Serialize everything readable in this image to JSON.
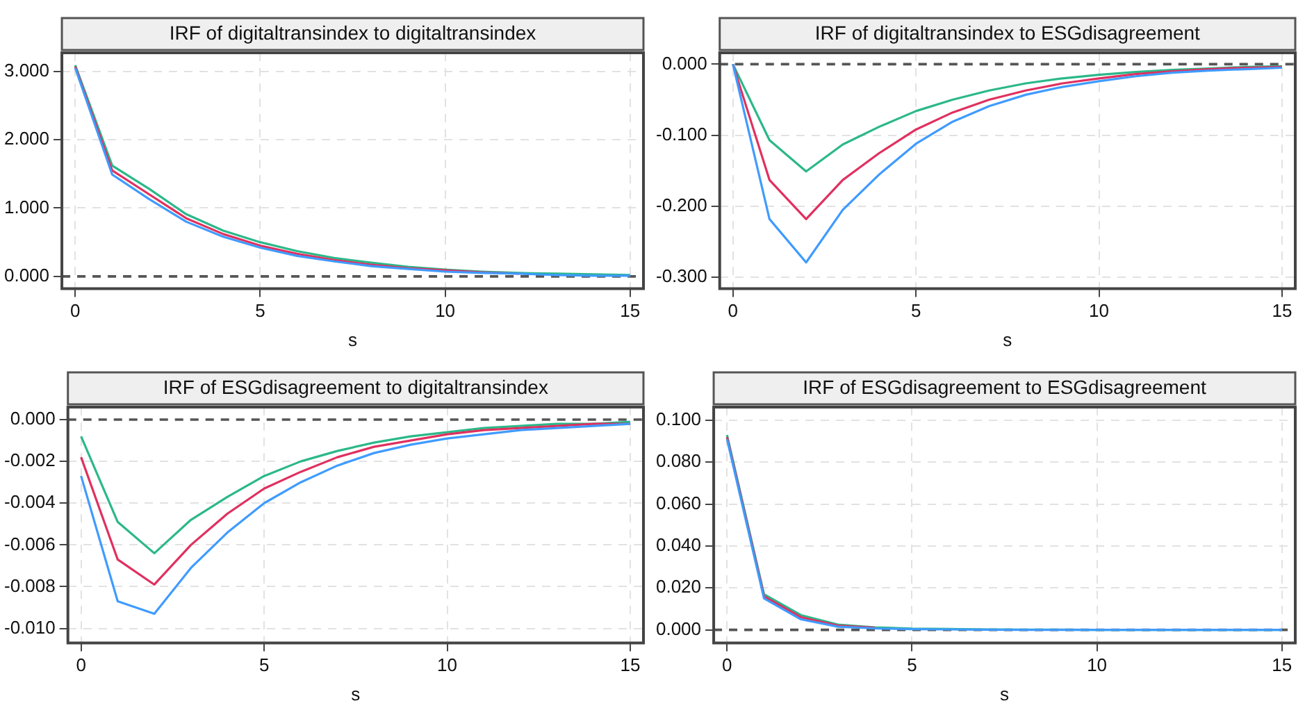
{
  "chart_data": [
    {
      "type": "line",
      "title": "IRF of digitaltransindex to digitaltransindex",
      "xlabel": "s",
      "x": [
        0,
        1,
        2,
        3,
        4,
        5,
        6,
        7,
        8,
        9,
        10,
        11,
        12,
        13,
        14,
        15
      ],
      "xlim": [
        -0.36,
        15.36
      ],
      "xticks": [
        0,
        5,
        10,
        15
      ],
      "ylim": [
        -0.18,
        3.27
      ],
      "yticks": [
        {
          "value": 0,
          "label": "0.000"
        },
        {
          "value": 1,
          "label": "1.000"
        },
        {
          "value": 2,
          "label": "2.000"
        },
        {
          "value": 3,
          "label": "3.000"
        }
      ],
      "grid": true,
      "ref_lines": [
        {
          "axis": "y",
          "value": 0,
          "line_style": "dashed"
        }
      ],
      "series": [
        {
          "color": "#3f9bff",
          "values": [
            3.05,
            1.49,
            1.13,
            0.8,
            0.58,
            0.42,
            0.3,
            0.22,
            0.15,
            0.11,
            0.07,
            0.05,
            0.04,
            0.02,
            0.01,
            0.01
          ]
        },
        {
          "color": "#e0305f",
          "values": [
            3.07,
            1.55,
            1.2,
            0.85,
            0.62,
            0.45,
            0.33,
            0.24,
            0.17,
            0.12,
            0.09,
            0.06,
            0.04,
            null,
            null,
            null
          ]
        },
        {
          "color": "#2bb889",
          "values": [
            3.09,
            1.62,
            1.28,
            0.91,
            0.67,
            0.5,
            0.37,
            0.27,
            0.2,
            0.14,
            0.1,
            0.07,
            0.05,
            0.04,
            0.03,
            0.02
          ]
        }
      ]
    },
    {
      "type": "line",
      "title": "IRF of digitaltransindex to ESGdisagreement",
      "xlabel": "s",
      "x": [
        0,
        1,
        2,
        3,
        4,
        5,
        6,
        7,
        8,
        9,
        10,
        11,
        12,
        13,
        14,
        15
      ],
      "xlim": [
        -0.36,
        15.36
      ],
      "xticks": [
        0,
        5,
        10,
        15
      ],
      "ylim": [
        -0.316,
        0.016
      ],
      "yticks": [
        {
          "value": -0.3,
          "label": "-0.300"
        },
        {
          "value": -0.2,
          "label": "-0.200"
        },
        {
          "value": -0.1,
          "label": "-0.100"
        },
        {
          "value": 0,
          "label": "0.000"
        }
      ],
      "grid": true,
      "ref_lines": [
        {
          "axis": "y",
          "value": 0,
          "line_style": "dashed"
        }
      ],
      "series": [
        {
          "color": "#3f9bff",
          "values": [
            0,
            -0.218,
            -0.279,
            -0.205,
            -0.155,
            -0.112,
            -0.081,
            -0.059,
            -0.043,
            -0.032,
            -0.024,
            -0.017,
            -0.012,
            -0.009,
            -0.007,
            -0.005
          ]
        },
        {
          "color": "#e0305f",
          "values": [
            0,
            -0.163,
            -0.218,
            -0.163,
            -0.125,
            -0.092,
            -0.068,
            -0.05,
            -0.037,
            -0.027,
            -0.02,
            -0.014,
            -0.01,
            -0.007,
            -0.005,
            -0.004
          ]
        },
        {
          "color": "#2bb889",
          "values": [
            0,
            -0.107,
            -0.151,
            -0.113,
            -0.088,
            -0.066,
            -0.05,
            -0.037,
            -0.027,
            -0.02,
            -0.015,
            -0.011,
            -0.008,
            -0.006,
            -0.004,
            -0.003
          ]
        }
      ]
    },
    {
      "type": "line",
      "title": "IRF of ESGdisagreement to digitaltransindex",
      "xlabel": "s",
      "x": [
        0,
        1,
        2,
        3,
        4,
        5,
        6,
        7,
        8,
        9,
        10,
        11,
        12,
        13,
        14,
        15
      ],
      "xlim": [
        -0.36,
        15.36
      ],
      "xticks": [
        0,
        5,
        10,
        15
      ],
      "ylim": [
        -0.0107,
        0.0006
      ],
      "yticks": [
        {
          "value": -0.01,
          "label": "-0.010"
        },
        {
          "value": -0.008,
          "label": "-0.008"
        },
        {
          "value": -0.006,
          "label": "-0.006"
        },
        {
          "value": -0.004,
          "label": "-0.004"
        },
        {
          "value": -0.002,
          "label": "-0.002"
        },
        {
          "value": 0,
          "label": "0.000"
        }
      ],
      "grid": true,
      "ref_lines": [
        {
          "axis": "y",
          "value": 0,
          "line_style": "dashed"
        }
      ],
      "series": [
        {
          "color": "#3f9bff",
          "values": [
            -0.0027,
            -0.0087,
            -0.0093,
            -0.0071,
            -0.0054,
            -0.004,
            -0.003,
            -0.0022,
            -0.0016,
            -0.0012,
            -0.0009,
            -0.0007,
            -0.0005,
            -0.0004,
            -0.0003,
            -0.0002
          ]
        },
        {
          "color": "#e0305f",
          "values": [
            -0.0018,
            -0.0067,
            -0.0079,
            -0.006,
            -0.0045,
            -0.0033,
            -0.0025,
            -0.0018,
            -0.0013,
            -0.001,
            -0.0007,
            -0.0005,
            -0.0004,
            -0.0003,
            -0.0002,
            -0.0002
          ]
        },
        {
          "color": "#2bb889",
          "values": [
            -0.0008,
            -0.0049,
            -0.0064,
            -0.0048,
            -0.0037,
            -0.0027,
            -0.002,
            -0.0015,
            -0.0011,
            -0.0008,
            -0.0006,
            -0.0004,
            -0.0003,
            -0.0002,
            -0.0002,
            -0.0001
          ]
        }
      ]
    },
    {
      "type": "line",
      "title": "IRF of ESGdisagreement to ESGdisagreement",
      "xlabel": "s",
      "x": [
        0,
        1,
        2,
        3,
        4,
        5,
        6,
        7,
        8,
        9,
        10,
        11,
        12,
        13,
        14,
        15
      ],
      "xlim": [
        -0.36,
        15.36
      ],
      "xticks": [
        0,
        5,
        10,
        15
      ],
      "ylim": [
        -0.0063,
        0.1063
      ],
      "yticks": [
        {
          "value": 0,
          "label": "0.000"
        },
        {
          "value": 0.02,
          "label": "0.020"
        },
        {
          "value": 0.04,
          "label": "0.040"
        },
        {
          "value": 0.06,
          "label": "0.060"
        },
        {
          "value": 0.08,
          "label": "0.080"
        },
        {
          "value": 0.1,
          "label": "0.100"
        }
      ],
      "grid": true,
      "ref_lines": [
        {
          "axis": "y",
          "value": 0,
          "line_style": "dashed"
        }
      ],
      "series": [
        {
          "color": "#3f9bff",
          "values": [
            0.091,
            0.015,
            0.005,
            0.0015,
            0.0007,
            0.0003,
            0.0002,
            0.0001,
            0,
            0,
            0,
            0,
            0,
            0,
            0,
            0
          ]
        },
        {
          "color": "#e0305f",
          "values": [
            0.092,
            0.016,
            0.006,
            0.002,
            0.001,
            null,
            null,
            null,
            null,
            null,
            null,
            null,
            null,
            null,
            null,
            null
          ]
        },
        {
          "color": "#2bb889",
          "values": [
            0.093,
            0.017,
            0.007,
            0.0025,
            0.0012,
            0.0006,
            0.0004,
            0.0002,
            0.0001,
            0.0001,
            0,
            0,
            0,
            0,
            0,
            0
          ]
        }
      ]
    }
  ]
}
